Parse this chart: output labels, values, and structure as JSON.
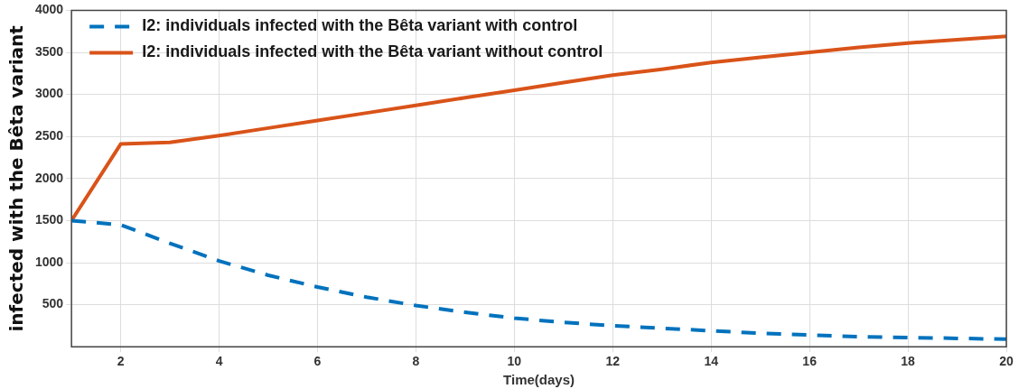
{
  "chart_data": {
    "type": "line",
    "xlabel": "Time(days)",
    "ylabel": "infected with the Bêta variant",
    "x": [
      1,
      2,
      3,
      4,
      5,
      6,
      7,
      8,
      9,
      10,
      11,
      12,
      13,
      14,
      15,
      16,
      17,
      18,
      19,
      20
    ],
    "series": [
      {
        "name": "I2: individuals infected with the Bêta variant with control",
        "color": "#0072bd",
        "line_style": "dashed",
        "values": [
          1500,
          1450,
          1230,
          1020,
          850,
          710,
          590,
          490,
          410,
          340,
          290,
          250,
          220,
          190,
          160,
          140,
          120,
          110,
          100,
          90
        ]
      },
      {
        "name": "I2: individuals infected with the Bêta variant without control",
        "color": "#d95319",
        "line_style": "solid",
        "values": [
          1500,
          2410,
          2430,
          2510,
          2600,
          2690,
          2780,
          2870,
          2960,
          3050,
          3140,
          3230,
          3300,
          3380,
          3440,
          3500,
          3560,
          3610,
          3650,
          3690
        ]
      }
    ],
    "xlim": [
      1,
      20
    ],
    "xticks": [
      2,
      4,
      6,
      8,
      10,
      12,
      14,
      16,
      18,
      20
    ],
    "ylim": [
      0,
      4000
    ],
    "yticks": [
      500,
      1000,
      1500,
      2000,
      2500,
      3000,
      3500,
      4000
    ],
    "grid": true,
    "legend": "top left",
    "marker": "none"
  }
}
